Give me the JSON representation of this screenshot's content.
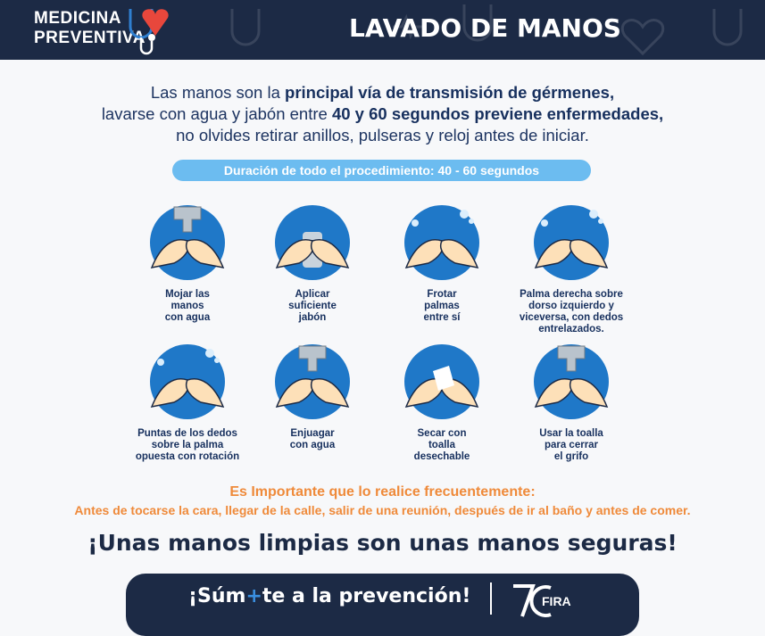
{
  "header": {
    "logo_line1": "MEDICINA",
    "logo_line2": "PREVENTIVA",
    "title": "LAVADO DE MANOS"
  },
  "intro": {
    "l1a": "Las manos son la ",
    "l1b": "principal vía de transmisión de gérmenes,",
    "l2a": "lavarse con agua y jabón entre ",
    "l2b": "40 y 60 segundos previene enfermedades,",
    "l3": "no olvides retirar anillos, pulseras y reloj antes de iniciar."
  },
  "duration": "Duración de todo el procedimiento: 40 - 60 segundos",
  "steps": [
    {
      "label": "Mojar las\nmanos\ncon agua",
      "icon": "faucet-hands-icon"
    },
    {
      "label": "Aplicar\nsuficiente\njabón",
      "icon": "soap-dispenser-icon"
    },
    {
      "label": "Frotar\npalmas\nentre sí",
      "icon": "rub-palms-icon"
    },
    {
      "label": "Palma derecha sobre\ndorso izquierdo y\nviceversa, con dedos\nentrelazados.",
      "icon": "interlaced-fingers-icon"
    },
    {
      "label": "Puntas de los dedos\nsobre la palma\nopuesta con rotación",
      "icon": "fingertips-rotation-icon"
    },
    {
      "label": "Enjuagar\ncon agua",
      "icon": "rinse-hands-icon"
    },
    {
      "label": "Secar con\ntoalla\ndesechable",
      "icon": "towel-dry-icon"
    },
    {
      "label": "Usar la toalla\npara cerrar\nel grifo",
      "icon": "close-faucet-icon"
    }
  ],
  "important": {
    "heading": "Es Importante que lo realice frecuentemente:",
    "text": "Antes de tocarse la cara, llegar de la calle, salir de una reunión, después de ir al baño y antes de comer."
  },
  "slogan": "¡Unas manos limpias son unas manos seguras!",
  "footer": {
    "cta_a": "¡Súm",
    "cta_plus": "+",
    "cta_b": "te a la prevención!",
    "logo_text": "70 FIRA"
  },
  "colors": {
    "navy": "#1c2a45",
    "circle": "#1f78c8",
    "pill": "#6cbcf0",
    "orange": "#ef8a3a",
    "heart": "#e8473c"
  }
}
